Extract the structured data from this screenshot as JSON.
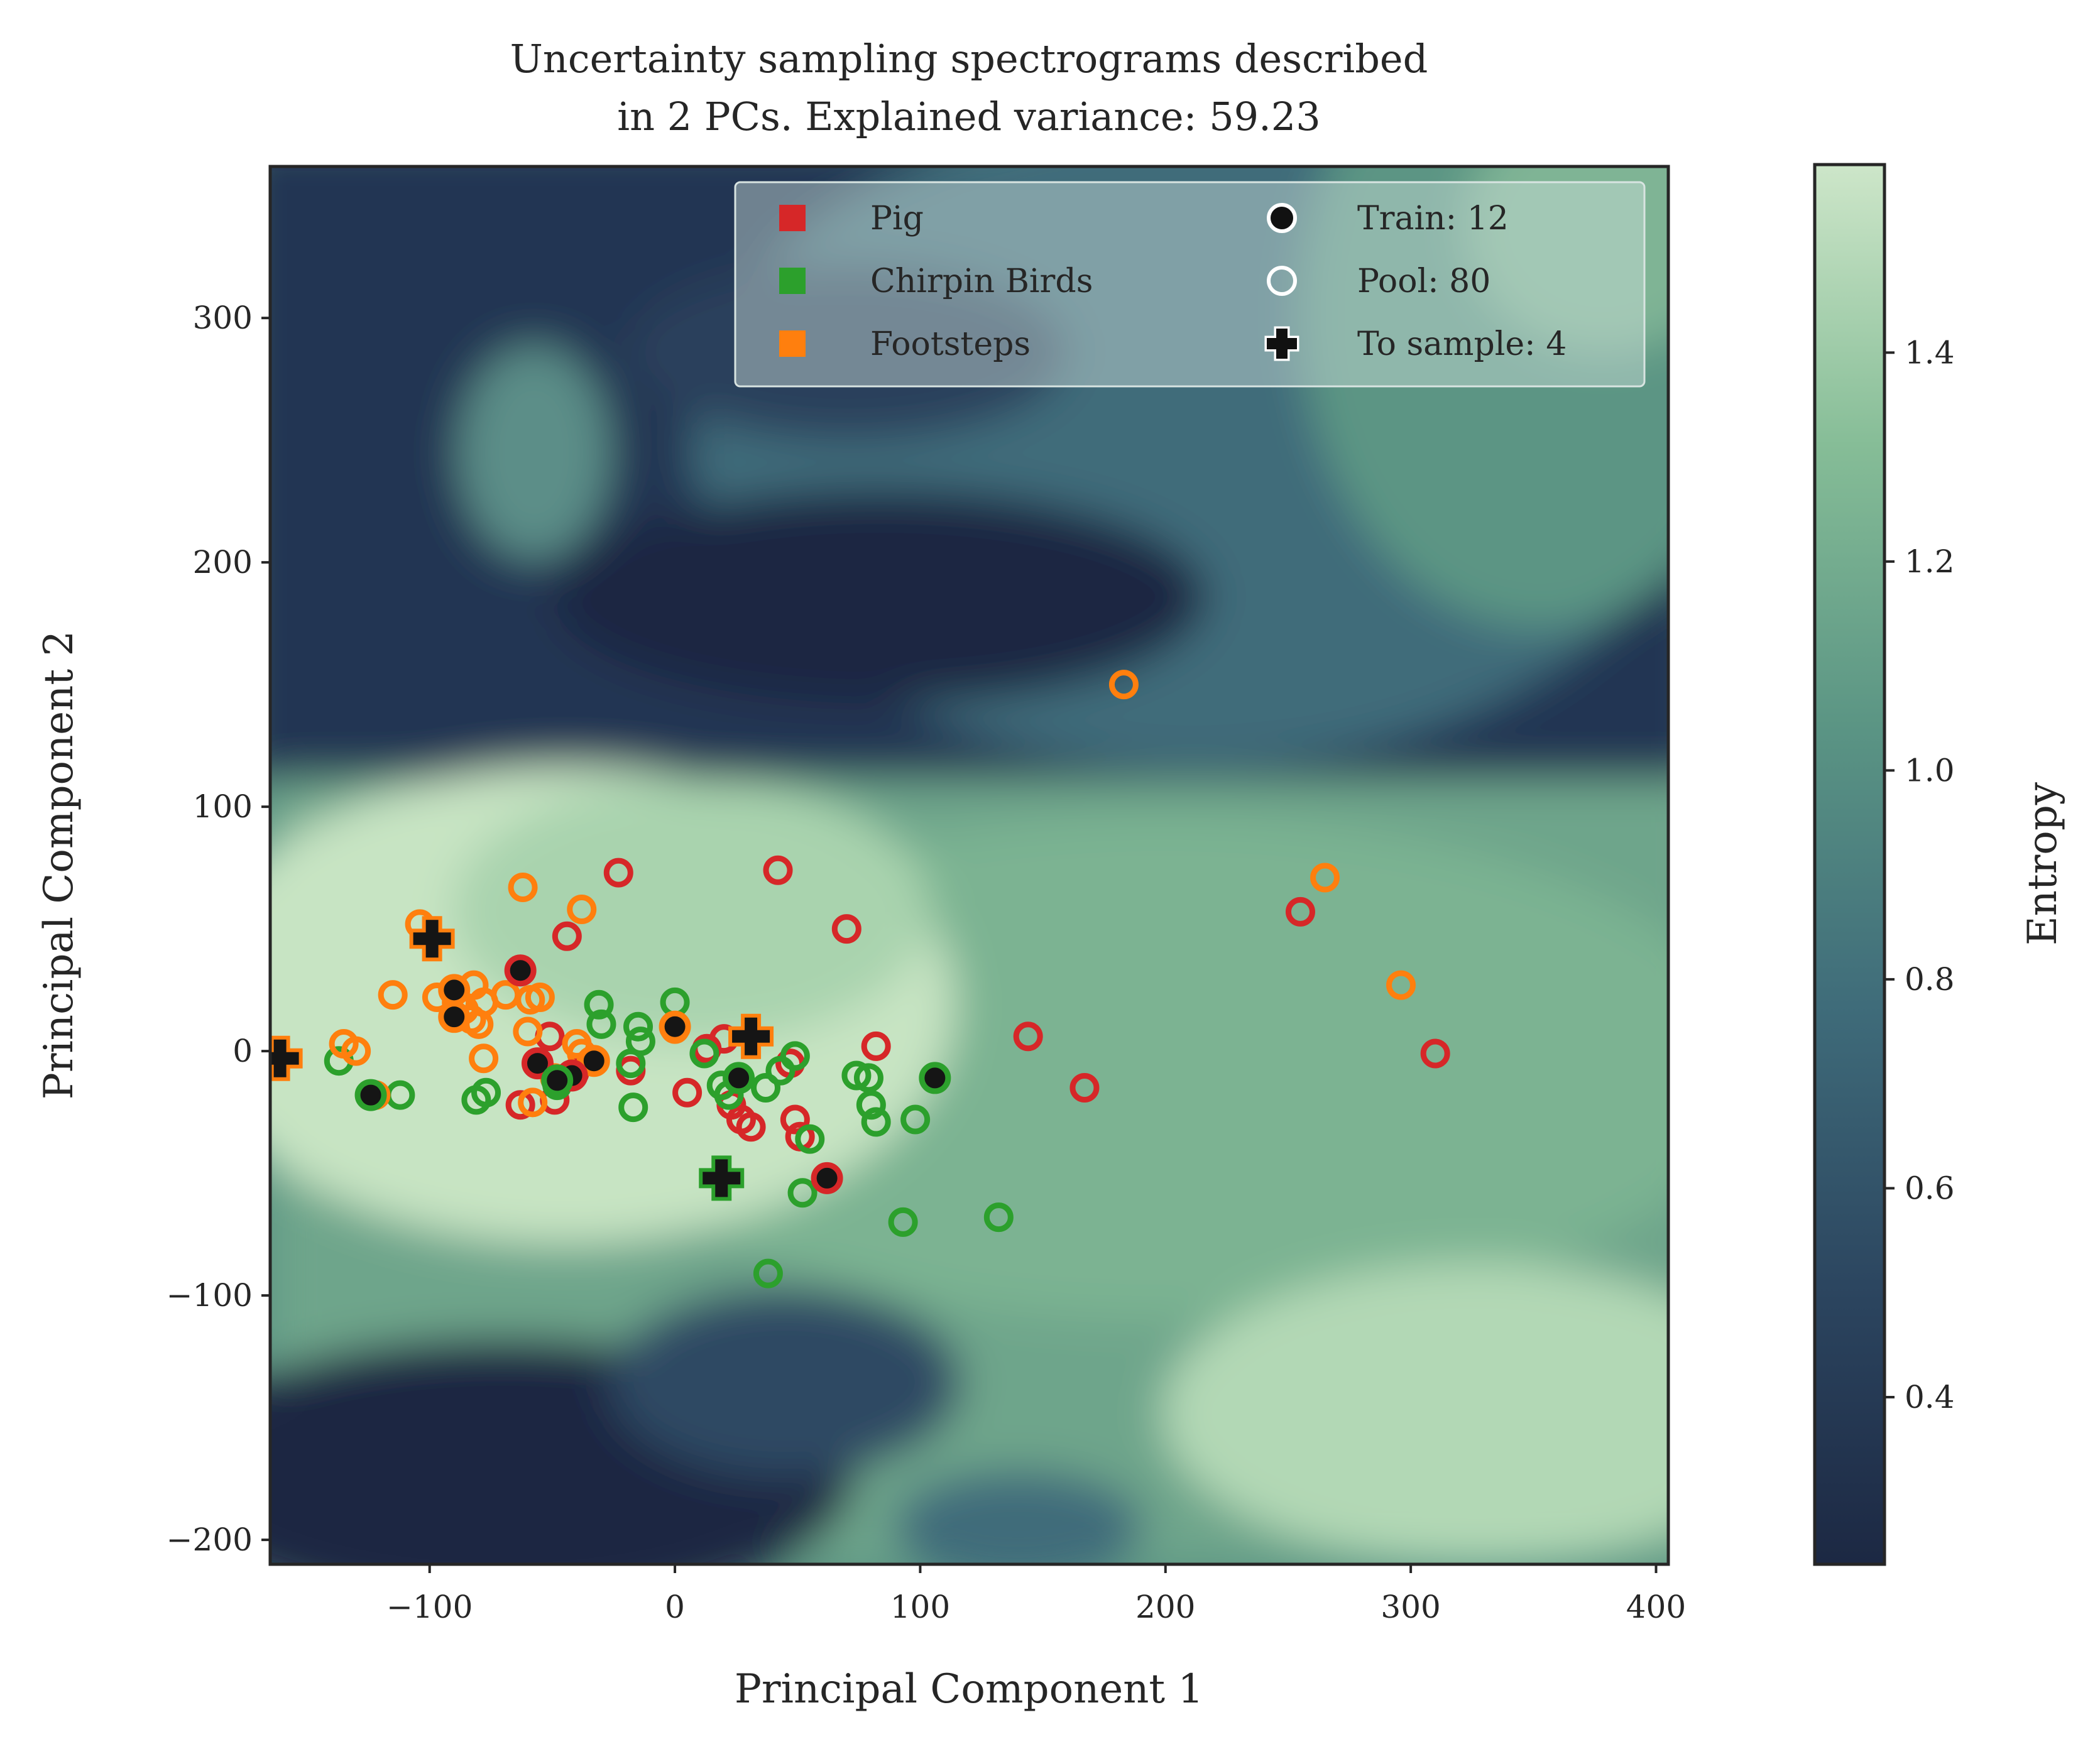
{
  "chart_data": {
    "type": "scatter",
    "title_line1": "Uncertainty sampling spectrograms described",
    "title_line2": "in 2 PCs. Explained variance: 59.23",
    "xlabel": "Principal Component 1",
    "ylabel": "Principal Component 2",
    "xlim": [
      -165,
      405
    ],
    "ylim": [
      -210,
      362
    ],
    "xticks": [
      -100,
      0,
      100,
      200,
      300,
      400
    ],
    "xtick_labels": [
      "−100",
      "0",
      "100",
      "200",
      "300",
      "400"
    ],
    "yticks": [
      -200,
      -100,
      0,
      100,
      200,
      300
    ],
    "ytick_labels": [
      "−200",
      "−100",
      "0",
      "100",
      "200",
      "300"
    ],
    "colorbar": {
      "label": "Entropy",
      "range": [
        0.24,
        1.58
      ],
      "ticks": [
        0.4,
        0.6,
        0.8,
        1.0,
        1.2,
        1.4
      ],
      "tick_labels": [
        "0.4",
        "0.6",
        "0.8",
        "1.0",
        "1.2",
        "1.4"
      ],
      "colormap": [
        "#1c2843",
        "#2c4660",
        "#3f6c7a",
        "#5b9584",
        "#86bd97",
        "#cde6c9"
      ]
    },
    "legend": {
      "placement": "upper right",
      "classes": [
        {
          "label": "Pig",
          "color": "#d62728"
        },
        {
          "label": "Chirpin Birds",
          "color": "#2ca02c"
        },
        {
          "label": "Footsteps",
          "color": "#ff7f0e"
        }
      ],
      "markers": [
        {
          "label": "Train: 12",
          "kind": "train"
        },
        {
          "label": "Pool: 80",
          "kind": "pool"
        },
        {
          "label": "To sample: 4",
          "kind": "sample"
        }
      ]
    },
    "class_colors": {
      "pig": "#d62728",
      "birds": "#2ca02c",
      "footsteps": "#ff7f0e"
    },
    "points": {
      "pool": [
        [
          -23,
          73,
          "pig"
        ],
        [
          42,
          74,
          "pig"
        ],
        [
          70,
          50,
          "pig"
        ],
        [
          -44,
          47,
          "pig"
        ],
        [
          -51,
          6,
          "pig"
        ],
        [
          -56,
          -5,
          "pig"
        ],
        [
          -49,
          -20,
          "pig"
        ],
        [
          -41,
          -9,
          "pig"
        ],
        [
          -63,
          -22,
          "pig"
        ],
        [
          -18,
          -8,
          "pig"
        ],
        [
          5,
          -17,
          "pig"
        ],
        [
          13,
          1,
          "pig"
        ],
        [
          20,
          5,
          "pig"
        ],
        [
          23,
          -22,
          "pig"
        ],
        [
          27,
          -28,
          "pig"
        ],
        [
          31,
          -31,
          "pig"
        ],
        [
          47,
          -5,
          "pig"
        ],
        [
          49,
          -28,
          "pig"
        ],
        [
          51,
          -35,
          "pig"
        ],
        [
          82,
          2,
          "pig"
        ],
        [
          144,
          6,
          "pig"
        ],
        [
          167,
          -15,
          "pig"
        ],
        [
          255,
          57,
          "pig"
        ],
        [
          310,
          -1,
          "pig"
        ],
        [
          -31,
          19,
          "birds"
        ],
        [
          -30,
          11,
          "birds"
        ],
        [
          -15,
          10,
          "birds"
        ],
        [
          -14,
          4,
          "birds"
        ],
        [
          -18,
          -5,
          "birds"
        ],
        [
          -17,
          -23,
          "birds"
        ],
        [
          0,
          20,
          "birds"
        ],
        [
          12,
          -1,
          "birds"
        ],
        [
          19,
          -14,
          "birds"
        ],
        [
          22,
          -18,
          "birds"
        ],
        [
          37,
          -15,
          "birds"
        ],
        [
          43,
          -8,
          "birds"
        ],
        [
          49,
          -2,
          "birds"
        ],
        [
          55,
          -36,
          "birds"
        ],
        [
          52,
          -58,
          "birds"
        ],
        [
          38,
          -91,
          "birds"
        ],
        [
          74,
          -10,
          "birds"
        ],
        [
          79,
          -11,
          "birds"
        ],
        [
          80,
          -22,
          "birds"
        ],
        [
          82,
          -29,
          "birds"
        ],
        [
          98,
          -28,
          "birds"
        ],
        [
          93,
          -70,
          "birds"
        ],
        [
          132,
          -68,
          "birds"
        ],
        [
          -77,
          -17,
          "birds"
        ],
        [
          -81,
          -20,
          "birds"
        ],
        [
          -112,
          -18,
          "birds"
        ],
        [
          -137,
          -4,
          "birds"
        ],
        [
          -48,
          -14,
          "birds"
        ],
        [
          -104,
          52,
          "footsteps"
        ],
        [
          -62,
          67,
          "footsteps"
        ],
        [
          -38,
          58,
          "footsteps"
        ],
        [
          -115,
          23,
          "footsteps"
        ],
        [
          -97,
          22,
          "footsteps"
        ],
        [
          -89,
          20,
          "footsteps"
        ],
        [
          -82,
          27,
          "footsteps"
        ],
        [
          -78,
          20,
          "footsteps"
        ],
        [
          -69,
          23,
          "footsteps"
        ],
        [
          -55,
          22,
          "footsteps"
        ],
        [
          -60,
          8,
          "footsteps"
        ],
        [
          -83,
          13,
          "footsteps"
        ],
        [
          -86,
          17,
          "footsteps"
        ],
        [
          -78,
          -3,
          "footsteps"
        ],
        [
          -40,
          3,
          "footsteps"
        ],
        [
          -38,
          -1,
          "footsteps"
        ],
        [
          -34,
          -4,
          "footsteps"
        ],
        [
          -49,
          -11,
          "footsteps"
        ],
        [
          -58,
          -21,
          "footsteps"
        ],
        [
          -122,
          -18,
          "footsteps"
        ],
        [
          -135,
          3,
          "footsteps"
        ],
        [
          -130,
          0,
          "footsteps"
        ],
        [
          0,
          9,
          "footsteps"
        ],
        [
          183,
          150,
          "footsteps"
        ],
        [
          265,
          71,
          "footsteps"
        ],
        [
          296,
          27,
          "footsteps"
        ],
        [
          -59,
          21,
          "footsteps"
        ],
        [
          -80,
          11,
          "footsteps"
        ]
      ],
      "train": [
        [
          -63,
          33,
          "pig"
        ],
        [
          -56,
          -5,
          "pig"
        ],
        [
          62,
          -52,
          "pig"
        ],
        [
          -33,
          -4,
          "footsteps"
        ],
        [
          -90,
          25,
          "footsteps"
        ],
        [
          -90,
          14,
          "footsteps"
        ],
        [
          -42,
          -10,
          "pig"
        ],
        [
          0,
          10,
          "footsteps"
        ],
        [
          26,
          -11,
          "birds"
        ],
        [
          106,
          -11,
          "birds"
        ],
        [
          -124,
          -18,
          "birds"
        ],
        [
          -48,
          -12,
          "birds"
        ]
      ],
      "to_sample": [
        [
          -99,
          46,
          "footsteps"
        ],
        [
          31,
          6,
          "footsteps"
        ],
        [
          -161,
          -3,
          "footsteps"
        ],
        [
          19,
          -52,
          "birds"
        ]
      ]
    }
  }
}
